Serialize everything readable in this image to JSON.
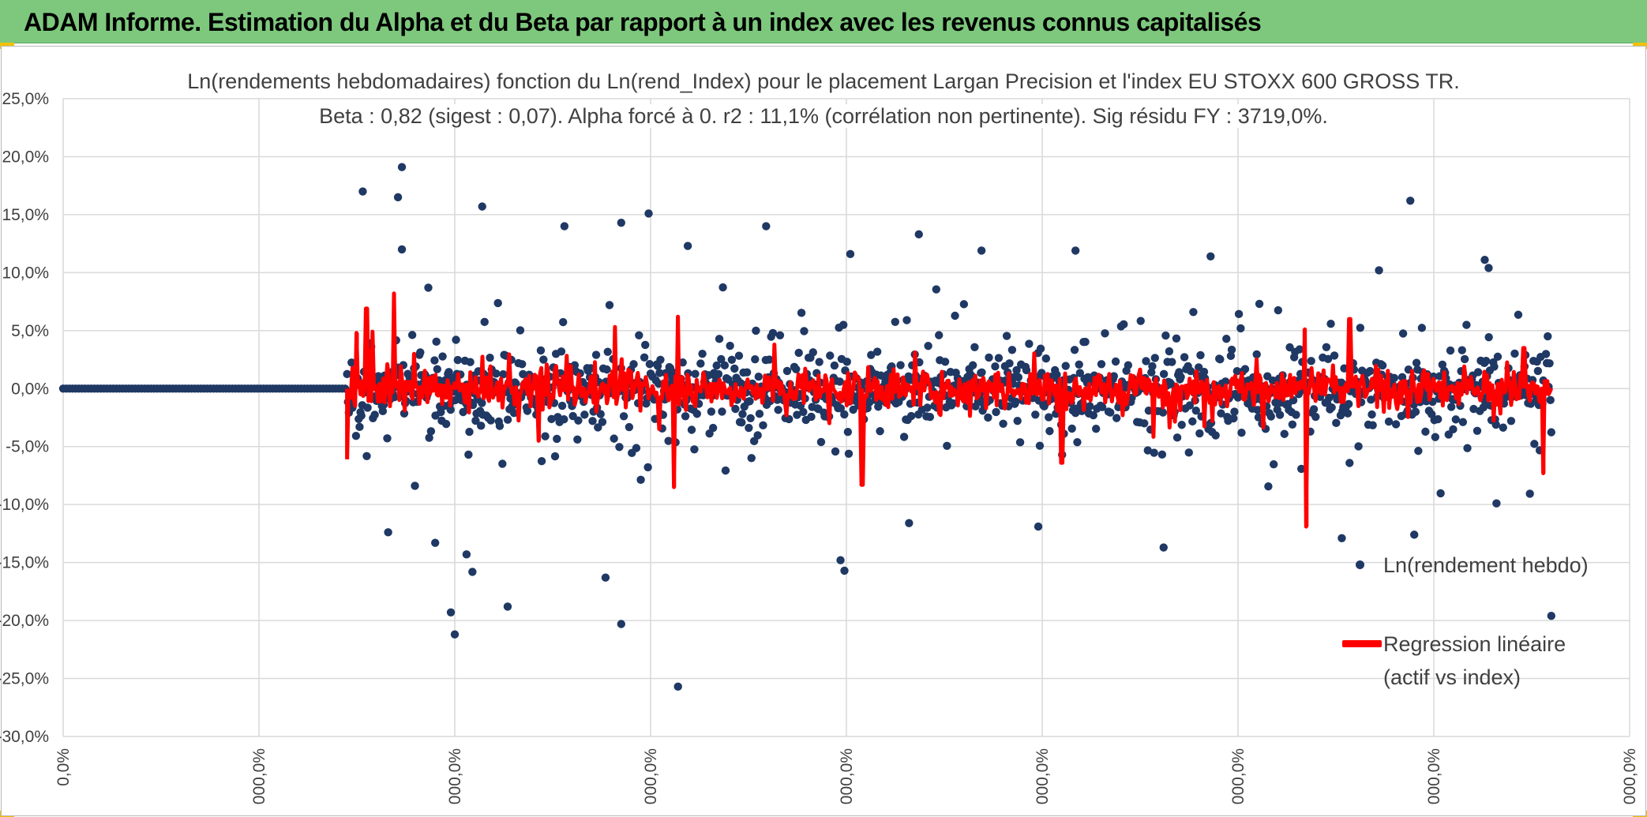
{
  "report_title": "ADAM Informe. Estimation du Alpha et du Beta par rapport à un index avec les revenus connus capitalisés",
  "colors": {
    "header_bg": "#7dc87d",
    "scatter": "#1f3864",
    "regression": "#ff0000",
    "grid": "#d9d9d9",
    "text": "#404040"
  },
  "chart_data": {
    "type": "scatter",
    "title": "Ln(rendements hebdomadaires) fonction du Ln(rend_Index) pour le placement Largan Precision  et l'index EU STOXX 600 GROSS TR.",
    "subtitle": "Beta : 0,82 (sigest : 0,07). Alpha forcé à 0. r2 : 11,1% (corrélation non pertinente). Sig résidu FY : 3719,0%.",
    "ylim": [
      -30,
      25
    ],
    "y_ticks": [
      "25,0%",
      "20,0%",
      "15,0%",
      "10,0%",
      "5,0%",
      "0,0%",
      "-5,0%",
      "-10,0%",
      "-15,0%",
      "-20,0%",
      "-25,0%",
      "-30,0%"
    ],
    "x_ticks": [
      "0,0%",
      "000,0%",
      "000,0%",
      "000,0%",
      "000,0%",
      "000,0%",
      "000,0%",
      "000,0%",
      "000,0%"
    ],
    "grid": true,
    "legend_position": "bottom-right",
    "series": [
      {
        "name": "Ln(rendement hebdo)",
        "style": "markers",
        "x_range": [
          0,
          7.6
        ],
        "flat_until": 1.45,
        "points": 1350,
        "outliers": [
          [
            1.53,
            17.0
          ],
          [
            1.73,
            19.1
          ],
          [
            1.71,
            16.5
          ],
          [
            1.73,
            12.0
          ],
          [
            2.14,
            15.7
          ],
          [
            2.56,
            14.0
          ],
          [
            2.85,
            14.3
          ],
          [
            2.99,
            15.1
          ],
          [
            3.19,
            12.3
          ],
          [
            3.59,
            14.0
          ],
          [
            4.02,
            11.6
          ],
          [
            4.37,
            13.3
          ],
          [
            4.69,
            11.9
          ],
          [
            5.17,
            11.9
          ],
          [
            5.86,
            11.4
          ],
          [
            6.88,
            16.2
          ],
          [
            7.26,
            11.1
          ],
          [
            7.28,
            10.4
          ],
          [
            6.72,
            10.2
          ],
          [
            3.14,
            -25.7
          ],
          [
            2.0,
            -21.2
          ],
          [
            1.98,
            -19.3
          ],
          [
            2.85,
            -20.3
          ],
          [
            2.27,
            -18.8
          ],
          [
            2.77,
            -16.3
          ],
          [
            2.09,
            -15.8
          ],
          [
            3.97,
            -14.8
          ],
          [
            3.99,
            -15.7
          ],
          [
            5.62,
            -13.7
          ],
          [
            6.53,
            -12.9
          ],
          [
            4.98,
            -11.9
          ],
          [
            6.9,
            -12.6
          ],
          [
            7.32,
            -9.9
          ],
          [
            7.6,
            -19.6
          ],
          [
            1.9,
            -13.3
          ],
          [
            2.06,
            -14.3
          ],
          [
            4.32,
            -11.6
          ]
        ]
      },
      {
        "name": "Regression linéaire\n(actif vs index)",
        "style": "line",
        "x_range": [
          1.45,
          7.6
        ],
        "extremes": [
          [
            1.45,
            -6.1
          ],
          [
            1.5,
            4.8
          ],
          [
            1.55,
            6.9
          ],
          [
            1.69,
            8.2
          ],
          [
            3.14,
            6.2
          ],
          [
            3.12,
            -8.5
          ],
          [
            4.08,
            -8.3
          ],
          [
            2.43,
            -4.5
          ],
          [
            5.1,
            -6.4
          ],
          [
            6.34,
            5.1
          ],
          [
            6.35,
            -11.9
          ],
          [
            6.57,
            6.0
          ],
          [
            7.56,
            -7.3
          ],
          [
            7.46,
            3.5
          ]
        ]
      }
    ]
  }
}
